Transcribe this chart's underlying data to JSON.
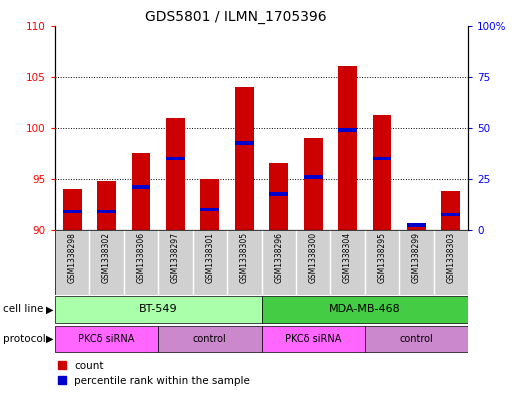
{
  "title": "GDS5801 / ILMN_1705396",
  "samples": [
    "GSM1338298",
    "GSM1338302",
    "GSM1338306",
    "GSM1338297",
    "GSM1338301",
    "GSM1338305",
    "GSM1338296",
    "GSM1338300",
    "GSM1338304",
    "GSM1338295",
    "GSM1338299",
    "GSM1338303"
  ],
  "counts": [
    94.0,
    94.8,
    97.5,
    101.0,
    95.0,
    104.0,
    96.5,
    99.0,
    106.0,
    101.2,
    90.5,
    93.8
  ],
  "percentile_values": [
    91.8,
    91.8,
    94.2,
    97.0,
    92.0,
    98.5,
    93.5,
    95.2,
    99.8,
    97.0,
    90.5,
    91.5
  ],
  "ylim_left": [
    90,
    110
  ],
  "ylim_right": [
    0,
    100
  ],
  "yticks_left": [
    90,
    95,
    100,
    105,
    110
  ],
  "yticks_right": [
    0,
    25,
    50,
    75,
    100
  ],
  "bar_color": "#cc0000",
  "blue_color": "#0000cc",
  "bar_bg_color": "#cccccc",
  "cell_line_colors": [
    "#aaffaa",
    "#44cc44"
  ],
  "protocol_color_odd": "#ff66ff",
  "protocol_color_even": "#cc88cc",
  "cell_lines": [
    "BT-549",
    "MDA-MB-468"
  ],
  "cell_line_ranges": [
    [
      0,
      5
    ],
    [
      6,
      11
    ]
  ],
  "protocols": [
    "PKCδ siRNA",
    "control",
    "PKCδ siRNA",
    "control"
  ],
  "protocol_ranges": [
    [
      0,
      2
    ],
    [
      3,
      5
    ],
    [
      6,
      8
    ],
    [
      9,
      11
    ]
  ]
}
